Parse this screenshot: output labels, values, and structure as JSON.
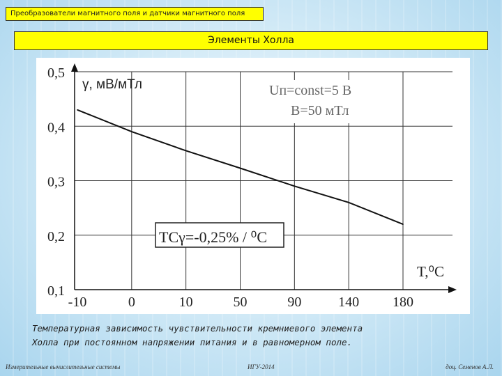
{
  "header": {
    "subject": "Преобразователи магнитного поля и датчики магнитного поля",
    "slide_title": "Элементы Холла"
  },
  "chart_data": {
    "type": "line",
    "title": "",
    "ylabel": "γ, мВ/мТл",
    "xlabel": "T,⁰C",
    "categories": [
      "-10",
      "0",
      "10",
      "50",
      "90",
      "140",
      "180"
    ],
    "y_ticks": [
      "0,5",
      "0,4",
      "0,3",
      "0,2",
      "0,1"
    ],
    "ylim": [
      0.1,
      0.5
    ],
    "grid": true,
    "series": [
      {
        "values": [
          0.43,
          0.39,
          0.355,
          0.323,
          0.29,
          0.26,
          0.22
        ]
      }
    ],
    "annotations": {
      "conditions_line1": "Uп=const=5 В",
      "conditions_line2": "B=50 мТл",
      "tc": "TCγ=-0,25% / ⁰C"
    }
  },
  "caption": {
    "line1": "Температурная зависимость чувствительности кремниевого элемента",
    "line2": "Холла при постоянном напряжении питания и в равномерном поле."
  },
  "footer": {
    "left": "Измерительные вычислительные системы",
    "center": "ИГУ-2014",
    "right": "доц. Семенов А.Л."
  }
}
